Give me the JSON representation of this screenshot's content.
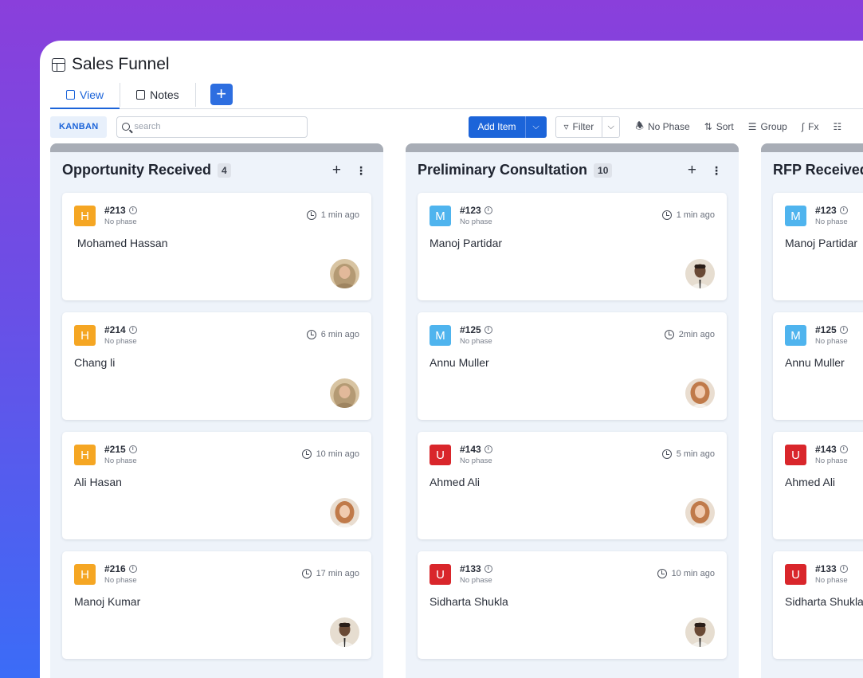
{
  "app": {
    "title": "Sales Funnel"
  },
  "tabs": [
    {
      "label": "View",
      "active": true
    },
    {
      "label": "Notes",
      "active": false
    }
  ],
  "add_tab_label": "+",
  "toolbar": {
    "view_mode": "KANBAN",
    "search_placeholder": "search",
    "add_item_label": "Add Item",
    "filter_label": "Filter",
    "phase_label": "No Phase",
    "sort_label": "Sort",
    "group_label": "Group",
    "fx_label": "Fx"
  },
  "colors": {
    "accent": "#1c64d9",
    "badge_H": "#f5a623",
    "badge_M": "#4fb4ee",
    "badge_U": "#d9262b"
  },
  "columns": [
    {
      "title": "Opportunity Received",
      "count": "4",
      "cards": [
        {
          "initial": "H",
          "color": "#f5a623",
          "ref": "#213",
          "phase": "No phase",
          "time": "1 min ago",
          "name": " Mohamed Hassan",
          "avatar": "hijab"
        },
        {
          "initial": "H",
          "color": "#f5a623",
          "ref": "#214",
          "phase": "No phase",
          "time": "6 min ago",
          "name": "Chang li",
          "avatar": "hijab"
        },
        {
          "initial": "H",
          "color": "#f5a623",
          "ref": "#215",
          "phase": "No phase",
          "time": "10 min ago",
          "name": "Ali Hasan",
          "avatar": "redhair"
        },
        {
          "initial": "H",
          "color": "#f5a623",
          "ref": "#216",
          "phase": "No phase",
          "time": "17 min ago",
          "name": "Manoj Kumar",
          "avatar": "man"
        }
      ]
    },
    {
      "title": "Preliminary Consultation",
      "count": "10",
      "cards": [
        {
          "initial": "M",
          "color": "#4fb4ee",
          "ref": "#123",
          "phase": "No phase",
          "time": "1 min ago",
          "name": "Manoj Partidar",
          "avatar": "man"
        },
        {
          "initial": "M",
          "color": "#4fb4ee",
          "ref": "#125",
          "phase": "No phase",
          "time": "2min ago",
          "name": "Annu Muller",
          "avatar": "redhair"
        },
        {
          "initial": "U",
          "color": "#d9262b",
          "ref": "#143",
          "phase": "No phase",
          "time": "5 min ago",
          "name": "Ahmed Ali",
          "avatar": "redhair"
        },
        {
          "initial": "U",
          "color": "#d9262b",
          "ref": "#133",
          "phase": "No phase",
          "time": "10 min ago",
          "name": "Sidharta Shukla",
          "avatar": "man"
        }
      ]
    },
    {
      "title": "RFP Received",
      "count": "",
      "cards": [
        {
          "initial": "M",
          "color": "#4fb4ee",
          "ref": "#123",
          "phase": "No phase",
          "time": "",
          "name": "Manoj Partidar",
          "avatar": ""
        },
        {
          "initial": "M",
          "color": "#4fb4ee",
          "ref": "#125",
          "phase": "No phase",
          "time": "",
          "name": "Annu Muller",
          "avatar": ""
        },
        {
          "initial": "U",
          "color": "#d9262b",
          "ref": "#143",
          "phase": "No phase",
          "time": "",
          "name": "Ahmed Ali",
          "avatar": ""
        },
        {
          "initial": "U",
          "color": "#d9262b",
          "ref": "#133",
          "phase": "No phase",
          "time": "",
          "name": "Sidharta Shukla",
          "avatar": ""
        }
      ]
    }
  ]
}
